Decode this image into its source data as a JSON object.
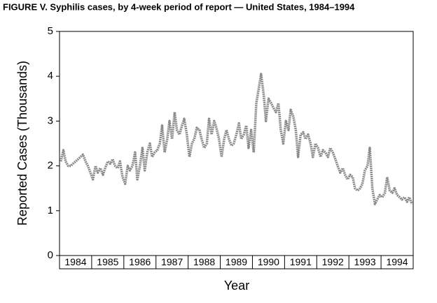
{
  "chart_data": {
    "type": "line",
    "title": "FIGURE V. Syphilis cases, by 4-week period of report — United States, 1984–1994",
    "xlabel": "Year",
    "ylabel": "Reported Cases (Thousands)",
    "xlim": [
      1984,
      1995
    ],
    "ylim": [
      0,
      5
    ],
    "yticks": [
      0,
      1,
      2,
      3,
      4,
      5
    ],
    "xticks": [
      {
        "value": 1984.5,
        "label": "1984"
      },
      {
        "value": 1985.5,
        "label": "1985"
      },
      {
        "value": 1986.5,
        "label": "1986"
      },
      {
        "value": 1987.5,
        "label": "1987"
      },
      {
        "value": 1988.5,
        "label": "1988"
      },
      {
        "value": 1989.5,
        "label": "1989"
      },
      {
        "value": 1990.5,
        "label": "1990"
      },
      {
        "value": 1991.5,
        "label": "1991"
      },
      {
        "value": 1992.5,
        "label": "1992"
      },
      {
        "value": 1993.5,
        "label": "1993"
      },
      {
        "value": 1994.5,
        "label": "1994"
      }
    ],
    "series": [
      {
        "color": "#8a8a8a",
        "x": [
          1984.04,
          1984.12,
          1984.19,
          1984.27,
          1984.35,
          1984.42,
          1984.5,
          1984.58,
          1984.65,
          1984.73,
          1984.81,
          1984.88,
          1984.96,
          1985.04,
          1985.12,
          1985.19,
          1985.27,
          1985.35,
          1985.42,
          1985.5,
          1985.58,
          1985.65,
          1985.73,
          1985.81,
          1985.88,
          1985.96,
          1986.04,
          1986.12,
          1986.19,
          1986.27,
          1986.35,
          1986.42,
          1986.5,
          1986.58,
          1986.65,
          1986.73,
          1986.81,
          1986.88,
          1986.96,
          1987.04,
          1987.12,
          1987.19,
          1987.27,
          1987.35,
          1987.42,
          1987.5,
          1987.58,
          1987.65,
          1987.73,
          1987.81,
          1987.88,
          1987.96,
          1988.04,
          1988.12,
          1988.19,
          1988.27,
          1988.35,
          1988.42,
          1988.5,
          1988.58,
          1988.65,
          1988.73,
          1988.81,
          1988.88,
          1988.96,
          1989.04,
          1989.12,
          1989.19,
          1989.27,
          1989.35,
          1989.42,
          1989.5,
          1989.58,
          1989.65,
          1989.73,
          1989.81,
          1989.88,
          1989.96,
          1990.04,
          1990.12,
          1990.19,
          1990.27,
          1990.35,
          1990.42,
          1990.5,
          1990.58,
          1990.65,
          1990.73,
          1990.81,
          1990.88,
          1990.96,
          1991.04,
          1991.12,
          1991.19,
          1991.27,
          1991.35,
          1991.42,
          1991.5,
          1991.58,
          1991.65,
          1991.73,
          1991.81,
          1991.88,
          1991.96,
          1992.04,
          1992.12,
          1992.19,
          1992.27,
          1992.35,
          1992.42,
          1992.5,
          1992.58,
          1992.65,
          1992.73,
          1992.81,
          1992.88,
          1992.96,
          1993.04,
          1993.12,
          1993.19,
          1993.27,
          1993.35,
          1993.42,
          1993.5,
          1993.58,
          1993.65,
          1993.73,
          1993.81,
          1993.88,
          1993.96,
          1994.04,
          1994.12,
          1994.19,
          1994.27,
          1994.35,
          1994.42,
          1994.5,
          1994.58,
          1994.65,
          1994.73,
          1994.81,
          1994.88,
          1994.96
        ],
        "values": [
          2.1,
          2.35,
          2.1,
          2.0,
          2.0,
          2.05,
          2.1,
          2.15,
          2.2,
          2.25,
          2.1,
          2.0,
          1.85,
          1.7,
          2.0,
          1.85,
          1.95,
          1.8,
          1.95,
          2.1,
          2.05,
          2.15,
          2.0,
          1.95,
          2.1,
          1.75,
          1.6,
          2.0,
          1.9,
          2.0,
          2.3,
          1.7,
          2.0,
          2.4,
          1.9,
          2.3,
          2.5,
          2.2,
          2.3,
          2.35,
          2.5,
          2.9,
          2.3,
          2.6,
          3.0,
          2.6,
          3.2,
          2.8,
          2.7,
          2.9,
          3.05,
          2.7,
          2.2,
          2.5,
          2.6,
          2.85,
          2.8,
          2.6,
          2.4,
          2.5,
          3.05,
          2.7,
          3.0,
          2.85,
          2.6,
          2.2,
          2.6,
          2.8,
          2.6,
          2.45,
          2.5,
          2.7,
          2.95,
          2.6,
          2.7,
          2.9,
          2.4,
          2.8,
          2.3,
          3.4,
          3.7,
          4.05,
          3.6,
          3.0,
          3.5,
          3.4,
          3.3,
          3.2,
          3.4,
          2.8,
          2.5,
          3.0,
          2.8,
          3.25,
          3.1,
          2.8,
          2.2,
          2.7,
          2.75,
          2.6,
          2.7,
          2.5,
          2.2,
          2.5,
          2.4,
          2.2,
          2.35,
          2.3,
          2.2,
          2.4,
          2.3,
          2.15,
          2.0,
          1.85,
          1.95,
          1.8,
          1.7,
          1.8,
          1.75,
          1.5,
          1.45,
          1.5,
          1.6,
          1.9,
          2.0,
          2.4,
          1.5,
          1.15,
          1.25,
          1.35,
          1.3,
          1.4,
          1.75,
          1.45,
          1.4,
          1.5,
          1.35,
          1.3,
          1.25,
          1.3,
          1.2,
          1.3,
          1.15
        ]
      }
    ]
  }
}
